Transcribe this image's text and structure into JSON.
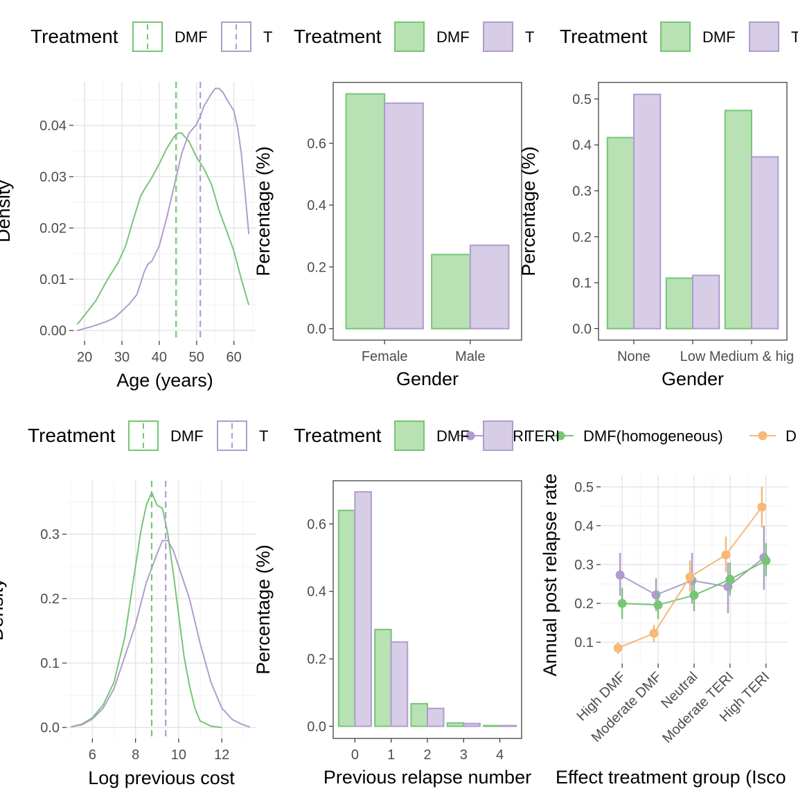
{
  "colors": {
    "DMF": "#77c576",
    "TERI": "#ae9ccf",
    "DMF_fill": "#b8e1b4",
    "TERI_fill": "#d8cde7",
    "other": "#f7b878",
    "grid": "#e5e5e5",
    "axis_text": "#4d4d4d"
  },
  "chart_data": [
    {
      "id": "age",
      "type": "line",
      "legend": {
        "title": "Treatment",
        "entries": [
          "DMF",
          "T"
        ]
      },
      "xlabel": "Age (years)",
      "ylabel": "Density",
      "xlim": [
        17,
        66
      ],
      "ylim": [
        -0.002,
        0.0485
      ],
      "xticks": [
        20,
        30,
        40,
        50,
        60
      ],
      "xtick_labels": [
        "20",
        "30",
        "40",
        "50",
        "60"
      ],
      "yticks": [
        0,
        0.01,
        0.02,
        0.03,
        0.04
      ],
      "ytick_labels": [
        "0.00",
        "0.01",
        "0.02",
        "0.03",
        "0.04"
      ],
      "series": [
        {
          "name": "DMF",
          "x": [
            18,
            20,
            23,
            26,
            29,
            31,
            33,
            35,
            36,
            38,
            40,
            42,
            44,
            45,
            46,
            48,
            50,
            52,
            54,
            56,
            58,
            60,
            62,
            64
          ],
          "y": [
            0.0012,
            0.003,
            0.0058,
            0.0098,
            0.0133,
            0.0165,
            0.0215,
            0.0262,
            0.0275,
            0.0298,
            0.0325,
            0.0355,
            0.0378,
            0.0385,
            0.0385,
            0.0368,
            0.0338,
            0.0315,
            0.0285,
            0.0235,
            0.0195,
            0.0155,
            0.01,
            0.005
          ]
        },
        {
          "name": "TERI",
          "x": [
            18,
            22,
            26,
            28,
            30,
            32,
            34,
            36,
            37,
            38,
            40,
            42,
            44,
            46,
            48,
            50,
            51,
            52,
            54,
            55,
            56,
            57,
            58,
            60,
            61,
            62,
            63,
            64
          ],
          "y": [
            0,
            0.0008,
            0.0018,
            0.0025,
            0.0038,
            0.0052,
            0.007,
            0.0115,
            0.013,
            0.0135,
            0.0165,
            0.022,
            0.0282,
            0.0345,
            0.0385,
            0.0402,
            0.0418,
            0.0438,
            0.0462,
            0.0472,
            0.0472,
            0.0465,
            0.0452,
            0.0428,
            0.0395,
            0.0345,
            0.0268,
            0.0188
          ]
        }
      ],
      "vlines": [
        {
          "series": "DMF",
          "x": 44.5
        },
        {
          "series": "TERI",
          "x": 51
        }
      ]
    },
    {
      "id": "gender",
      "type": "bar",
      "legend": {
        "title": "Treatment",
        "entries": [
          "DMF",
          "T"
        ]
      },
      "xlabel": "Gender",
      "ylabel": "Percentage (%)",
      "categories": [
        "Female",
        "Male"
      ],
      "ylim": [
        -0.037,
        0.797
      ],
      "yticks": [
        0,
        0.2,
        0.4,
        0.6
      ],
      "ytick_labels": [
        "0.0",
        "0.2",
        "0.4",
        "0.6"
      ],
      "series": [
        {
          "name": "DMF",
          "values": [
            0.76,
            0.24
          ]
        },
        {
          "name": "TERI",
          "values": [
            0.73,
            0.27
          ]
        }
      ]
    },
    {
      "id": "effect_cat",
      "type": "bar",
      "legend": {
        "title": "Treatment",
        "entries": [
          "DMF",
          "T"
        ]
      },
      "xlabel": "Gender",
      "ylabel": "Percentage (%)",
      "categories": [
        "None",
        "Low",
        "Medium & hig"
      ],
      "ylim": [
        -0.025,
        0.536
      ],
      "yticks": [
        0,
        0.1,
        0.2,
        0.3,
        0.4,
        0.5
      ],
      "ytick_labels": [
        "0.0",
        "0.1",
        "0.2",
        "0.3",
        "0.4",
        "0.5"
      ],
      "series": [
        {
          "name": "DMF",
          "values": [
            0.416,
            0.11,
            0.475
          ]
        },
        {
          "name": "TERI",
          "values": [
            0.51,
            0.116,
            0.374
          ]
        }
      ]
    },
    {
      "id": "log_cost",
      "type": "line",
      "legend": {
        "title": "Treatment",
        "entries": [
          "DMF",
          "T"
        ]
      },
      "xlabel": "Log previous cost",
      "ylabel": "Density",
      "xlim": [
        4.8,
        13.6
      ],
      "ylim": [
        -0.017,
        0.383
      ],
      "xticks": [
        6,
        8,
        10,
        12
      ],
      "xtick_labels": [
        "6",
        "8",
        "10",
        "12"
      ],
      "yticks": [
        0,
        0.1,
        0.2,
        0.3
      ],
      "ytick_labels": [
        "0.0",
        "0.1",
        "0.2",
        "0.3"
      ],
      "series": [
        {
          "name": "DMF",
          "x": [
            5,
            5.5,
            6,
            6.5,
            7,
            7.5,
            8,
            8.25,
            8.5,
            8.75,
            9,
            9.25,
            9.5,
            9.75,
            10,
            10.25,
            10.5,
            10.75,
            11,
            11.5,
            12
          ],
          "y": [
            0.001,
            0.005,
            0.015,
            0.035,
            0.07,
            0.14,
            0.25,
            0.305,
            0.345,
            0.365,
            0.345,
            0.34,
            0.3,
            0.24,
            0.175,
            0.11,
            0.065,
            0.03,
            0.01,
            0.002,
            0
          ]
        },
        {
          "name": "TERI",
          "x": [
            5,
            5.5,
            6,
            6.5,
            7,
            7.5,
            8,
            8.5,
            9,
            9.25,
            9.5,
            9.75,
            10,
            10.5,
            11,
            11.5,
            12,
            12.5,
            13,
            13.3
          ],
          "y": [
            0.001,
            0.004,
            0.013,
            0.03,
            0.06,
            0.11,
            0.16,
            0.225,
            0.27,
            0.29,
            0.29,
            0.275,
            0.25,
            0.2,
            0.13,
            0.07,
            0.03,
            0.012,
            0.004,
            0.001
          ]
        }
      ],
      "vlines": [
        {
          "series": "DMF",
          "x": 8.75
        },
        {
          "series": "TERI",
          "x": 9.4
        }
      ]
    },
    {
      "id": "relapse",
      "type": "bar",
      "legend": {
        "title": "Treatment",
        "entries": [
          "DMF",
          "TERI"
        ]
      },
      "xlabel": "Previous relapse number",
      "ylabel": "Percentage (%)",
      "categories": [
        "0",
        "1",
        "2",
        "3",
        "4"
      ],
      "ylim": [
        -0.036,
        0.728
      ],
      "yticks": [
        0,
        0.2,
        0.4,
        0.6
      ],
      "ytick_labels": [
        "0.0",
        "0.2",
        "0.4",
        "0.6"
      ],
      "series": [
        {
          "name": "DMF",
          "values": [
            0.64,
            0.287,
            0.067,
            0.01,
            0.002
          ]
        },
        {
          "name": "TERI",
          "values": [
            0.695,
            0.25,
            0.053,
            0.008,
            0.002
          ]
        }
      ]
    },
    {
      "id": "annual_rate",
      "type": "line",
      "legend": {
        "entries": [
          "TERI",
          "DMF(homogeneous)",
          "D"
        ]
      },
      "xlabel": "Effect treatment group (Isco",
      "ylabel": "Annual post relapse rate",
      "categories": [
        "High DMF",
        "Moderate DMF",
        "Neutral",
        "Moderate TERI",
        "High TERI"
      ],
      "ylim": [
        0.045,
        0.53
      ],
      "yticks": [
        0.1,
        0.2,
        0.3,
        0.4,
        0.5
      ],
      "ytick_labels": [
        "0.1",
        "0.2",
        "0.3",
        "0.4",
        "0.5"
      ],
      "series": [
        {
          "name": "TERI",
          "values": [
            0.273,
            0.222,
            0.259,
            0.243,
            0.318
          ],
          "lower": [
            0.22,
            0.18,
            0.2,
            0.175,
            0.235
          ],
          "upper": [
            0.33,
            0.265,
            0.33,
            0.305,
            0.4
          ]
        },
        {
          "name": "DMF(homogeneous)",
          "values": [
            0.2,
            0.196,
            0.221,
            0.262,
            0.31
          ],
          "lower": [
            0.16,
            0.16,
            0.18,
            0.22,
            0.27
          ],
          "upper": [
            0.24,
            0.232,
            0.262,
            0.305,
            0.355
          ]
        },
        {
          "name": "D",
          "values": [
            0.085,
            0.123,
            0.268,
            0.325,
            0.448
          ],
          "lower": [
            0.07,
            0.1,
            0.23,
            0.28,
            0.395
          ],
          "upper": [
            0.1,
            0.145,
            0.31,
            0.372,
            0.5
          ]
        }
      ]
    }
  ]
}
